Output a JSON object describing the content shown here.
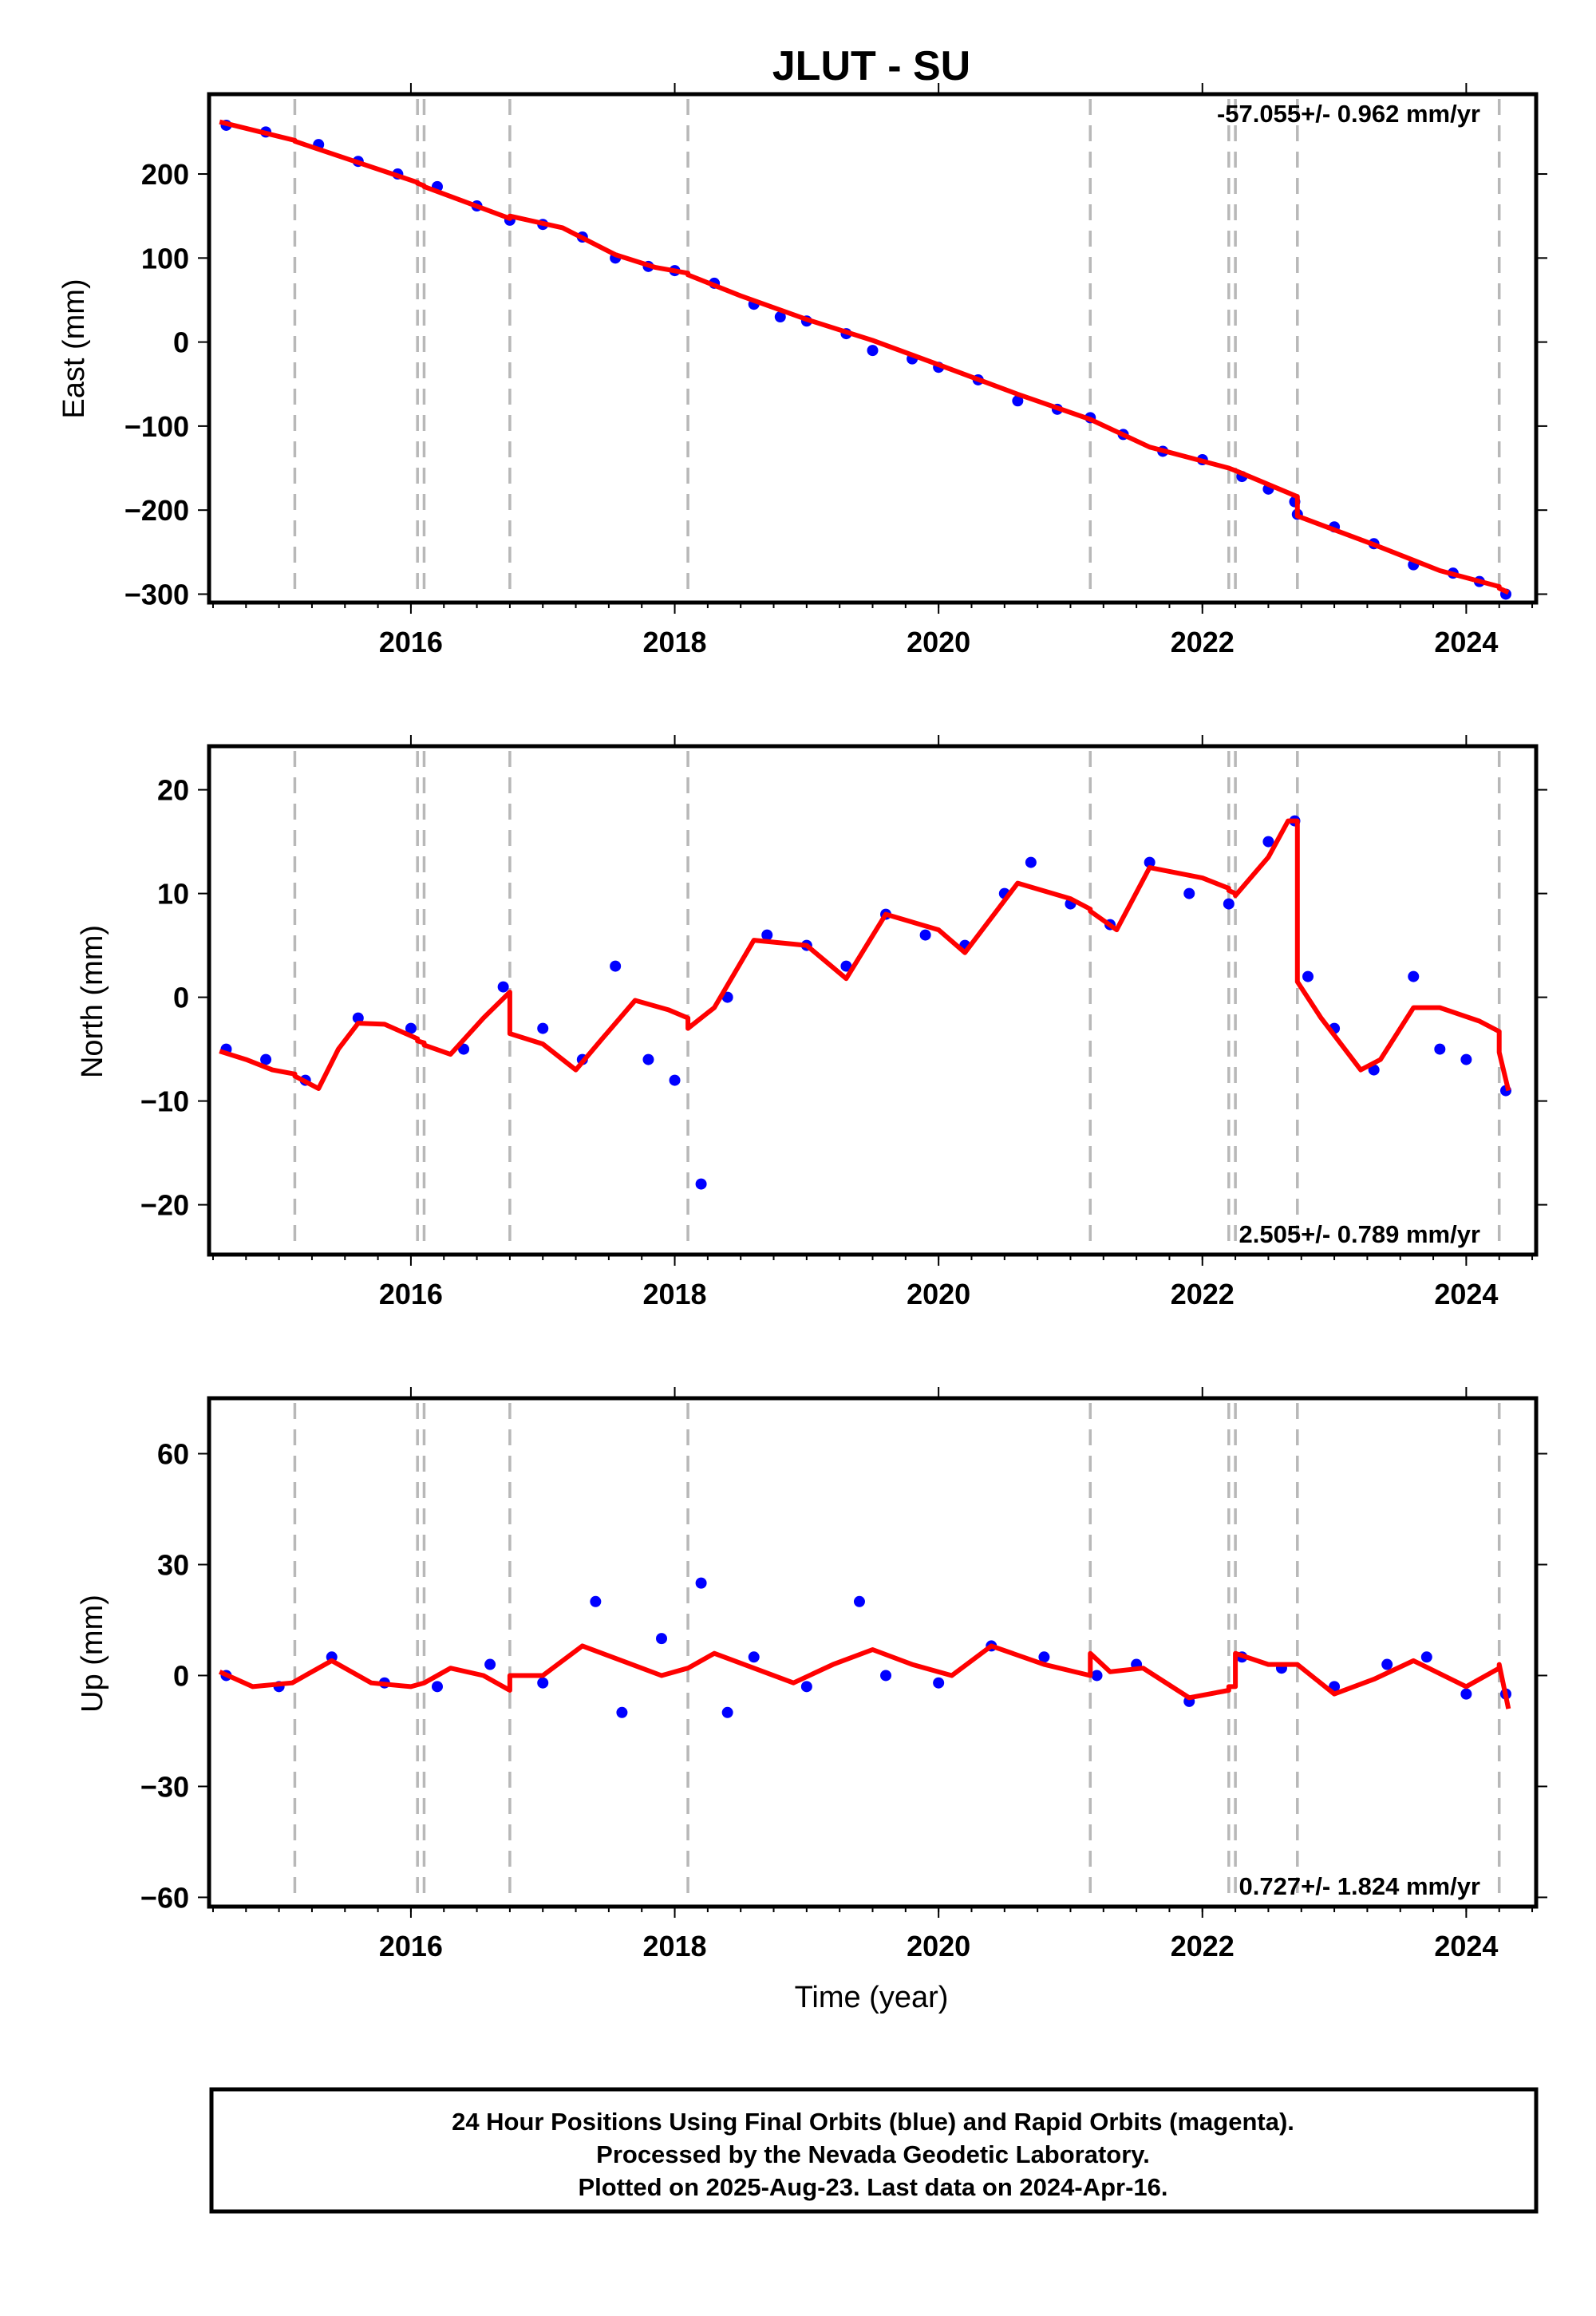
{
  "figure": {
    "title": "JLUT - SU",
    "x_axis_label": "Time (year)",
    "footer_lines": [
      "24 Hour Positions Using Final Orbits (blue) and Rapid Orbits (magenta).",
      "Processed by the Nevada Geodetic Laboratory.",
      "Plotted on 2025-Aug-23. Last data on 2024-Apr-16."
    ],
    "colors": {
      "data_points": "#0000ff",
      "model_line": "#ff0000",
      "event_lines": "#b8b8b8"
    }
  },
  "chart_data": [
    {
      "type": "scatter",
      "ylabel": "East (mm)",
      "rate_label": "-57.055+/- 0.962 mm/yr",
      "xlim": [
        2014.47,
        2024.53
      ],
      "ylim": [
        -310,
        295
      ],
      "xticks": [
        2016,
        2018,
        2020,
        2022,
        2024
      ],
      "yticks": [
        -300,
        -200,
        -100,
        0,
        100,
        200
      ],
      "ytick_labels": [
        "−300",
        "−200",
        "−100",
        "0",
        "100",
        "200"
      ],
      "event_lines": [
        2015.12,
        2016.05,
        2016.1,
        2016.75,
        2018.1,
        2021.15,
        2022.2,
        2022.25,
        2022.72,
        2024.25
      ],
      "series": [
        {
          "values": {
            "x": [
              2014.6,
              2014.9,
              2015.3,
              2015.6,
              2015.9,
              2016.2,
              2016.5,
              2016.75,
              2017.0,
              2017.3,
              2017.55,
              2017.8,
              2018.0,
              2018.3,
              2018.6,
              2018.8,
              2019.0,
              2019.3,
              2019.5,
              2019.8,
              2020.0,
              2020.3,
              2020.6,
              2020.9,
              2021.15,
              2021.4,
              2021.7,
              2022.0,
              2022.3,
              2022.5,
              2022.7,
              2022.72,
              2023.0,
              2023.3,
              2023.6,
              2023.9,
              2024.1,
              2024.3
            ],
            "y": [
              258,
              250,
              235,
              215,
              200,
              185,
              162,
              145,
              140,
              125,
              100,
              90,
              85,
              70,
              45,
              30,
              25,
              10,
              -10,
              -20,
              -30,
              -45,
              -70,
              -80,
              -90,
              -110,
              -130,
              -140,
              -160,
              -175,
              -190,
              -205,
              -220,
              -240,
              -265,
              -275,
              -285,
              -300
            ]
          }
        },
        {
          "name": "model",
          "values": {
            "x": [
              2014.55,
              2015.12,
              2015.12,
              2016.05,
              2016.05,
              2016.1,
              2016.1,
              2016.75,
              2016.75,
              2017.15,
              2017.55,
              2017.85,
              2018.1,
              2018.1,
              2018.5,
              2019.0,
              2019.5,
              2020.0,
              2020.6,
              2021.15,
              2021.15,
              2021.6,
              2022.2,
              2022.2,
              2022.25,
              2022.25,
              2022.72,
              2022.72,
              2023.3,
              2023.8,
              2024.25,
              2024.25,
              2024.32
            ],
            "y": [
              262,
              240,
              239,
              190,
              189,
              186,
              185,
              147,
              150,
              136,
              104,
              89,
              82,
              80,
              55,
              27,
              2,
              -27,
              -62,
              -92,
              -92,
              -125,
              -150,
              -150,
              -153,
              -153,
              -184,
              -207,
              -241,
              -272,
              -291,
              -293,
              -298
            ]
          }
        }
      ]
    },
    {
      "type": "scatter",
      "ylabel": "North (mm)",
      "rate_label": "2.505+/- 0.789 mm/yr",
      "xlim": [
        2014.47,
        2024.53
      ],
      "ylim": [
        -24.8,
        24.2
      ],
      "xticks": [
        2016,
        2018,
        2020,
        2022,
        2024
      ],
      "yticks": [
        -20,
        -10,
        0,
        10,
        20
      ],
      "ytick_labels": [
        "−20",
        "−10",
        "0",
        "10",
        "20"
      ],
      "event_lines": [
        2015.12,
        2016.05,
        2016.1,
        2016.75,
        2018.1,
        2021.15,
        2022.2,
        2022.25,
        2022.72,
        2024.25
      ],
      "series": [
        {
          "values": {
            "x": [
              2014.6,
              2014.9,
              2015.2,
              2015.6,
              2016.0,
              2016.4,
              2016.7,
              2017.0,
              2017.3,
              2017.55,
              2017.8,
              2018.0,
              2018.2,
              2018.4,
              2018.7,
              2019.0,
              2019.3,
              2019.6,
              2019.9,
              2020.2,
              2020.5,
              2020.7,
              2021.0,
              2021.3,
              2021.6,
              2021.9,
              2022.2,
              2022.5,
              2022.7,
              2022.8,
              2023.0,
              2023.3,
              2023.6,
              2023.8,
              2024.0,
              2024.3
            ],
            "y": [
              -5,
              -6,
              -8,
              -2,
              -3,
              -5,
              1,
              -3,
              -6,
              3,
              -6,
              -8,
              -18,
              0,
              6,
              5,
              3,
              8,
              6,
              5,
              10,
              13,
              9,
              7,
              13,
              10,
              9,
              15,
              17,
              2,
              -3,
              -7,
              2,
              -5,
              -6,
              -9
            ]
          }
        },
        {
          "name": "model",
          "values": {
            "x": [
              2014.55,
              2014.75,
              2014.95,
              2015.12,
              2015.12,
              2015.3,
              2015.45,
              2015.6,
              2015.8,
              2016.05,
              2016.05,
              2016.1,
              2016.1,
              2016.3,
              2016.55,
              2016.75,
              2016.75,
              2017.0,
              2017.25,
              2017.45,
              2017.7,
              2017.95,
              2018.1,
              2018.1,
              2018.3,
              2018.6,
              2019.0,
              2019.3,
              2019.6,
              2020.0,
              2020.2,
              2020.6,
              2021.0,
              2021.15,
              2021.15,
              2021.35,
              2021.6,
              2022.0,
              2022.2,
              2022.2,
              2022.25,
              2022.25,
              2022.5,
              2022.65,
              2022.72,
              2022.72,
              2022.9,
              2023.2,
              2023.35,
              2023.6,
              2023.8,
              2024.1,
              2024.25,
              2024.25,
              2024.32
            ],
            "y": [
              -5.2,
              -6,
              -7,
              -7.4,
              -7.6,
              -8.8,
              -5,
              -2.5,
              -2.6,
              -4,
              -4.2,
              -4.4,
              -4.6,
              -5.5,
              -2,
              0.5,
              -3.5,
              -4.5,
              -7,
              -4,
              -0.3,
              -1.2,
              -2,
              -3,
              -1,
              5.5,
              5,
              1.8,
              8,
              6.5,
              4.3,
              11,
              9.5,
              8.5,
              8.3,
              6.5,
              12.5,
              11.5,
              10.5,
              10.3,
              10,
              9.8,
              13.5,
              17,
              17,
              1.5,
              -2,
              -7,
              -6,
              -1,
              -1,
              -2.3,
              -3.3,
              -5.3,
              -9
            ]
          }
        }
      ]
    },
    {
      "type": "scatter",
      "ylabel": "Up (mm)",
      "rate_label": "0.727+/- 1.824 mm/yr",
      "xlim": [
        2014.47,
        2024.53
      ],
      "ylim": [
        -62.5,
        75
      ],
      "xticks": [
        2016,
        2018,
        2020,
        2022,
        2024
      ],
      "yticks": [
        -60,
        -30,
        0,
        30,
        60
      ],
      "ytick_labels": [
        "−60",
        "−30",
        "0",
        "30",
        "60"
      ],
      "event_lines": [
        2015.12,
        2016.05,
        2016.1,
        2016.75,
        2018.1,
        2021.15,
        2022.2,
        2022.25,
        2022.72,
        2024.25
      ],
      "series": [
        {
          "values": {
            "x": [
              2014.6,
              2015.0,
              2015.4,
              2015.8,
              2016.2,
              2016.6,
              2017.0,
              2017.4,
              2017.6,
              2017.9,
              2018.2,
              2018.4,
              2018.6,
              2019.0,
              2019.4,
              2019.6,
              2020.0,
              2020.4,
              2020.8,
              2021.2,
              2021.5,
              2021.9,
              2022.3,
              2022.6,
              2023.0,
              2023.4,
              2023.7,
              2024.0,
              2024.3
            ],
            "y": [
              0,
              -3,
              5,
              -2,
              -3,
              3,
              -2,
              20,
              -10,
              10,
              25,
              -10,
              5,
              -3,
              20,
              0,
              -2,
              8,
              5,
              0,
              3,
              -7,
              5,
              2,
              -3,
              3,
              5,
              -5,
              -5
            ]
          }
        },
        {
          "name": "model",
          "values": {
            "x": [
              2014.55,
              2014.8,
              2015.1,
              2015.4,
              2015.7,
              2016.0,
              2016.1,
              2016.3,
              2016.55,
              2016.75,
              2016.75,
              2017.0,
              2017.3,
              2017.6,
              2017.9,
              2018.1,
              2018.3,
              2018.6,
              2018.9,
              2019.2,
              2019.5,
              2019.8,
              2020.1,
              2020.4,
              2020.8,
              2021.15,
              2021.15,
              2021.3,
              2021.55,
              2021.9,
              2022.2,
              2022.2,
              2022.25,
              2022.25,
              2022.5,
              2022.72,
              2022.72,
              2023.0,
              2023.3,
              2023.6,
              2024.0,
              2024.25,
              2024.25,
              2024.32
            ],
            "y": [
              1,
              -3,
              -2,
              4,
              -2,
              -3,
              -2,
              2,
              0,
              -4,
              0,
              0,
              8,
              4,
              0,
              2,
              6,
              2,
              -2,
              3,
              7,
              3,
              0,
              8,
              3,
              0,
              6,
              1,
              2,
              -6,
              -4,
              -3,
              -3,
              6,
              3,
              3,
              3,
              -5,
              -1,
              4,
              -3,
              2,
              3,
              -9
            ]
          }
        }
      ]
    }
  ]
}
